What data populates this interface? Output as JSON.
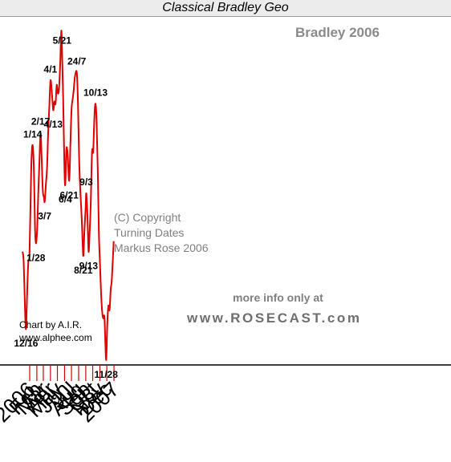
{
  "chart_data": {
    "type": "line",
    "title": "Classical Bradley Geo",
    "subtitle": "Bradley 2006",
    "series": [
      {
        "values": [
          [
            "2005-12-01",
            40
          ],
          [
            "2005-12-06",
            35
          ],
          [
            "2005-12-12",
            12
          ],
          [
            "2005-12-16",
            3
          ],
          [
            "2005-12-21",
            20
          ],
          [
            "2005-12-26",
            35
          ],
          [
            "2005-12-31",
            38
          ],
          [
            "2006-01-04",
            60
          ],
          [
            "2006-01-09",
            85
          ],
          [
            "2006-01-14",
            91
          ],
          [
            "2006-01-19",
            80
          ],
          [
            "2006-01-24",
            52
          ],
          [
            "2006-01-28",
            44
          ],
          [
            "2006-02-02",
            50
          ],
          [
            "2006-02-07",
            67
          ],
          [
            "2006-02-12",
            83
          ],
          [
            "2006-02-17",
            97
          ],
          [
            "2006-02-22",
            84
          ],
          [
            "2006-02-27",
            69
          ],
          [
            "2006-03-04",
            66
          ],
          [
            "2006-03-07",
            64
          ],
          [
            "2006-03-12",
            72
          ],
          [
            "2006-03-17",
            80
          ],
          [
            "2006-03-22",
            97
          ],
          [
            "2006-03-27",
            110
          ],
          [
            "2006-04-01",
            122
          ],
          [
            "2006-04-06",
            118
          ],
          [
            "2006-04-13",
            108
          ],
          [
            "2006-04-18",
            112
          ],
          [
            "2006-04-23",
            111
          ],
          [
            "2006-04-28",
            120
          ],
          [
            "2006-05-03",
            116
          ],
          [
            "2006-05-08",
            118
          ],
          [
            "2006-05-13",
            130
          ],
          [
            "2006-05-18",
            146
          ],
          [
            "2006-05-21",
            136
          ],
          [
            "2006-05-26",
            114
          ],
          [
            "2006-05-31",
            82
          ],
          [
            "2006-06-04",
            72
          ],
          [
            "2006-06-09",
            89
          ],
          [
            "2006-06-14",
            87
          ],
          [
            "2006-06-21",
            74
          ],
          [
            "2006-06-26",
            90
          ],
          [
            "2006-07-01",
            108
          ],
          [
            "2006-07-06",
            113
          ],
          [
            "2006-07-11",
            118
          ],
          [
            "2006-07-16",
            124
          ],
          [
            "2006-07-24",
            126
          ],
          [
            "2006-07-29",
            112
          ],
          [
            "2006-08-03",
            85
          ],
          [
            "2006-08-08",
            70
          ],
          [
            "2006-08-14",
            57
          ],
          [
            "2006-08-21",
            38
          ],
          [
            "2006-08-26",
            50
          ],
          [
            "2006-08-31",
            60
          ],
          [
            "2006-09-03",
            68
          ],
          [
            "2006-09-08",
            58
          ],
          [
            "2006-09-13",
            40
          ],
          [
            "2006-09-18",
            50
          ],
          [
            "2006-09-23",
            65
          ],
          [
            "2006-09-28",
            88
          ],
          [
            "2006-10-03",
            88
          ],
          [
            "2006-10-08",
            104
          ],
          [
            "2006-10-13",
            111
          ],
          [
            "2006-10-18",
            102
          ],
          [
            "2006-10-23",
            78
          ],
          [
            "2006-10-28",
            48
          ],
          [
            "2006-11-02",
            33
          ],
          [
            "2006-11-07",
            18
          ],
          [
            "2006-11-12",
            10
          ],
          [
            "2006-11-16",
            8
          ],
          [
            "2006-11-21",
            8
          ],
          [
            "2006-11-28",
            -12
          ],
          [
            "2006-12-03",
            5
          ],
          [
            "2006-12-08",
            14
          ],
          [
            "2006-12-13",
            12
          ],
          [
            "2006-12-18",
            22
          ],
          [
            "2006-12-23",
            27
          ],
          [
            "2006-12-31",
            45
          ]
        ]
      }
    ],
    "x_ticks": [
      "2006",
      "Feb",
      "Mar",
      "Apr",
      "May",
      "Jun",
      "Jul",
      "Aug",
      "Sep",
      "Oct",
      "Nov",
      "Dec",
      "2007"
    ],
    "y_range": [
      -14,
      150
    ],
    "y_axis": "unlabeled, no ticks",
    "grid": false,
    "line_color": "#e00000",
    "turning_dates": [
      {
        "label": "12/16",
        "date": "2005-12-16",
        "position": "below"
      },
      {
        "label": "1/14",
        "date": "2006-01-14",
        "position": "above"
      },
      {
        "label": "1/28",
        "date": "2006-01-28",
        "position": "below"
      },
      {
        "label": "2/17",
        "date": "2006-02-17",
        "position": "above"
      },
      {
        "label": "3/7",
        "date": "2006-03-07",
        "position": "below"
      },
      {
        "label": "4/1",
        "date": "2006-04-01",
        "position": "above"
      },
      {
        "label": "4/13",
        "date": "2006-04-13",
        "position": "below"
      },
      {
        "label": "5/21",
        "date": "2006-05-21",
        "position": "above"
      },
      {
        "label": "6/4",
        "date": "2006-06-04",
        "position": "below"
      },
      {
        "label": "6/21",
        "date": "2006-06-21",
        "position": "below"
      },
      {
        "label": "24/7",
        "date": "2006-07-24",
        "position": "above"
      },
      {
        "label": "8/21",
        "date": "2006-08-21",
        "position": "below"
      },
      {
        "label": "9/3",
        "date": "2006-09-03",
        "position": "above"
      },
      {
        "label": "9/13",
        "date": "2006-09-13",
        "position": "below"
      },
      {
        "label": "10/13",
        "date": "2006-10-13",
        "position": "above"
      },
      {
        "label": "11/28",
        "date": "2006-11-28",
        "position": "below"
      }
    ],
    "annotations": {
      "copyright_lines": [
        "(C) Copyright",
        "Turning Dates",
        "Markus Rose 2006"
      ],
      "more_info": "more info only at",
      "website": "www.ROSECAST.com",
      "credit_lines": [
        "Chart by A.I.R.",
        "www.alphee.com"
      ]
    }
  }
}
